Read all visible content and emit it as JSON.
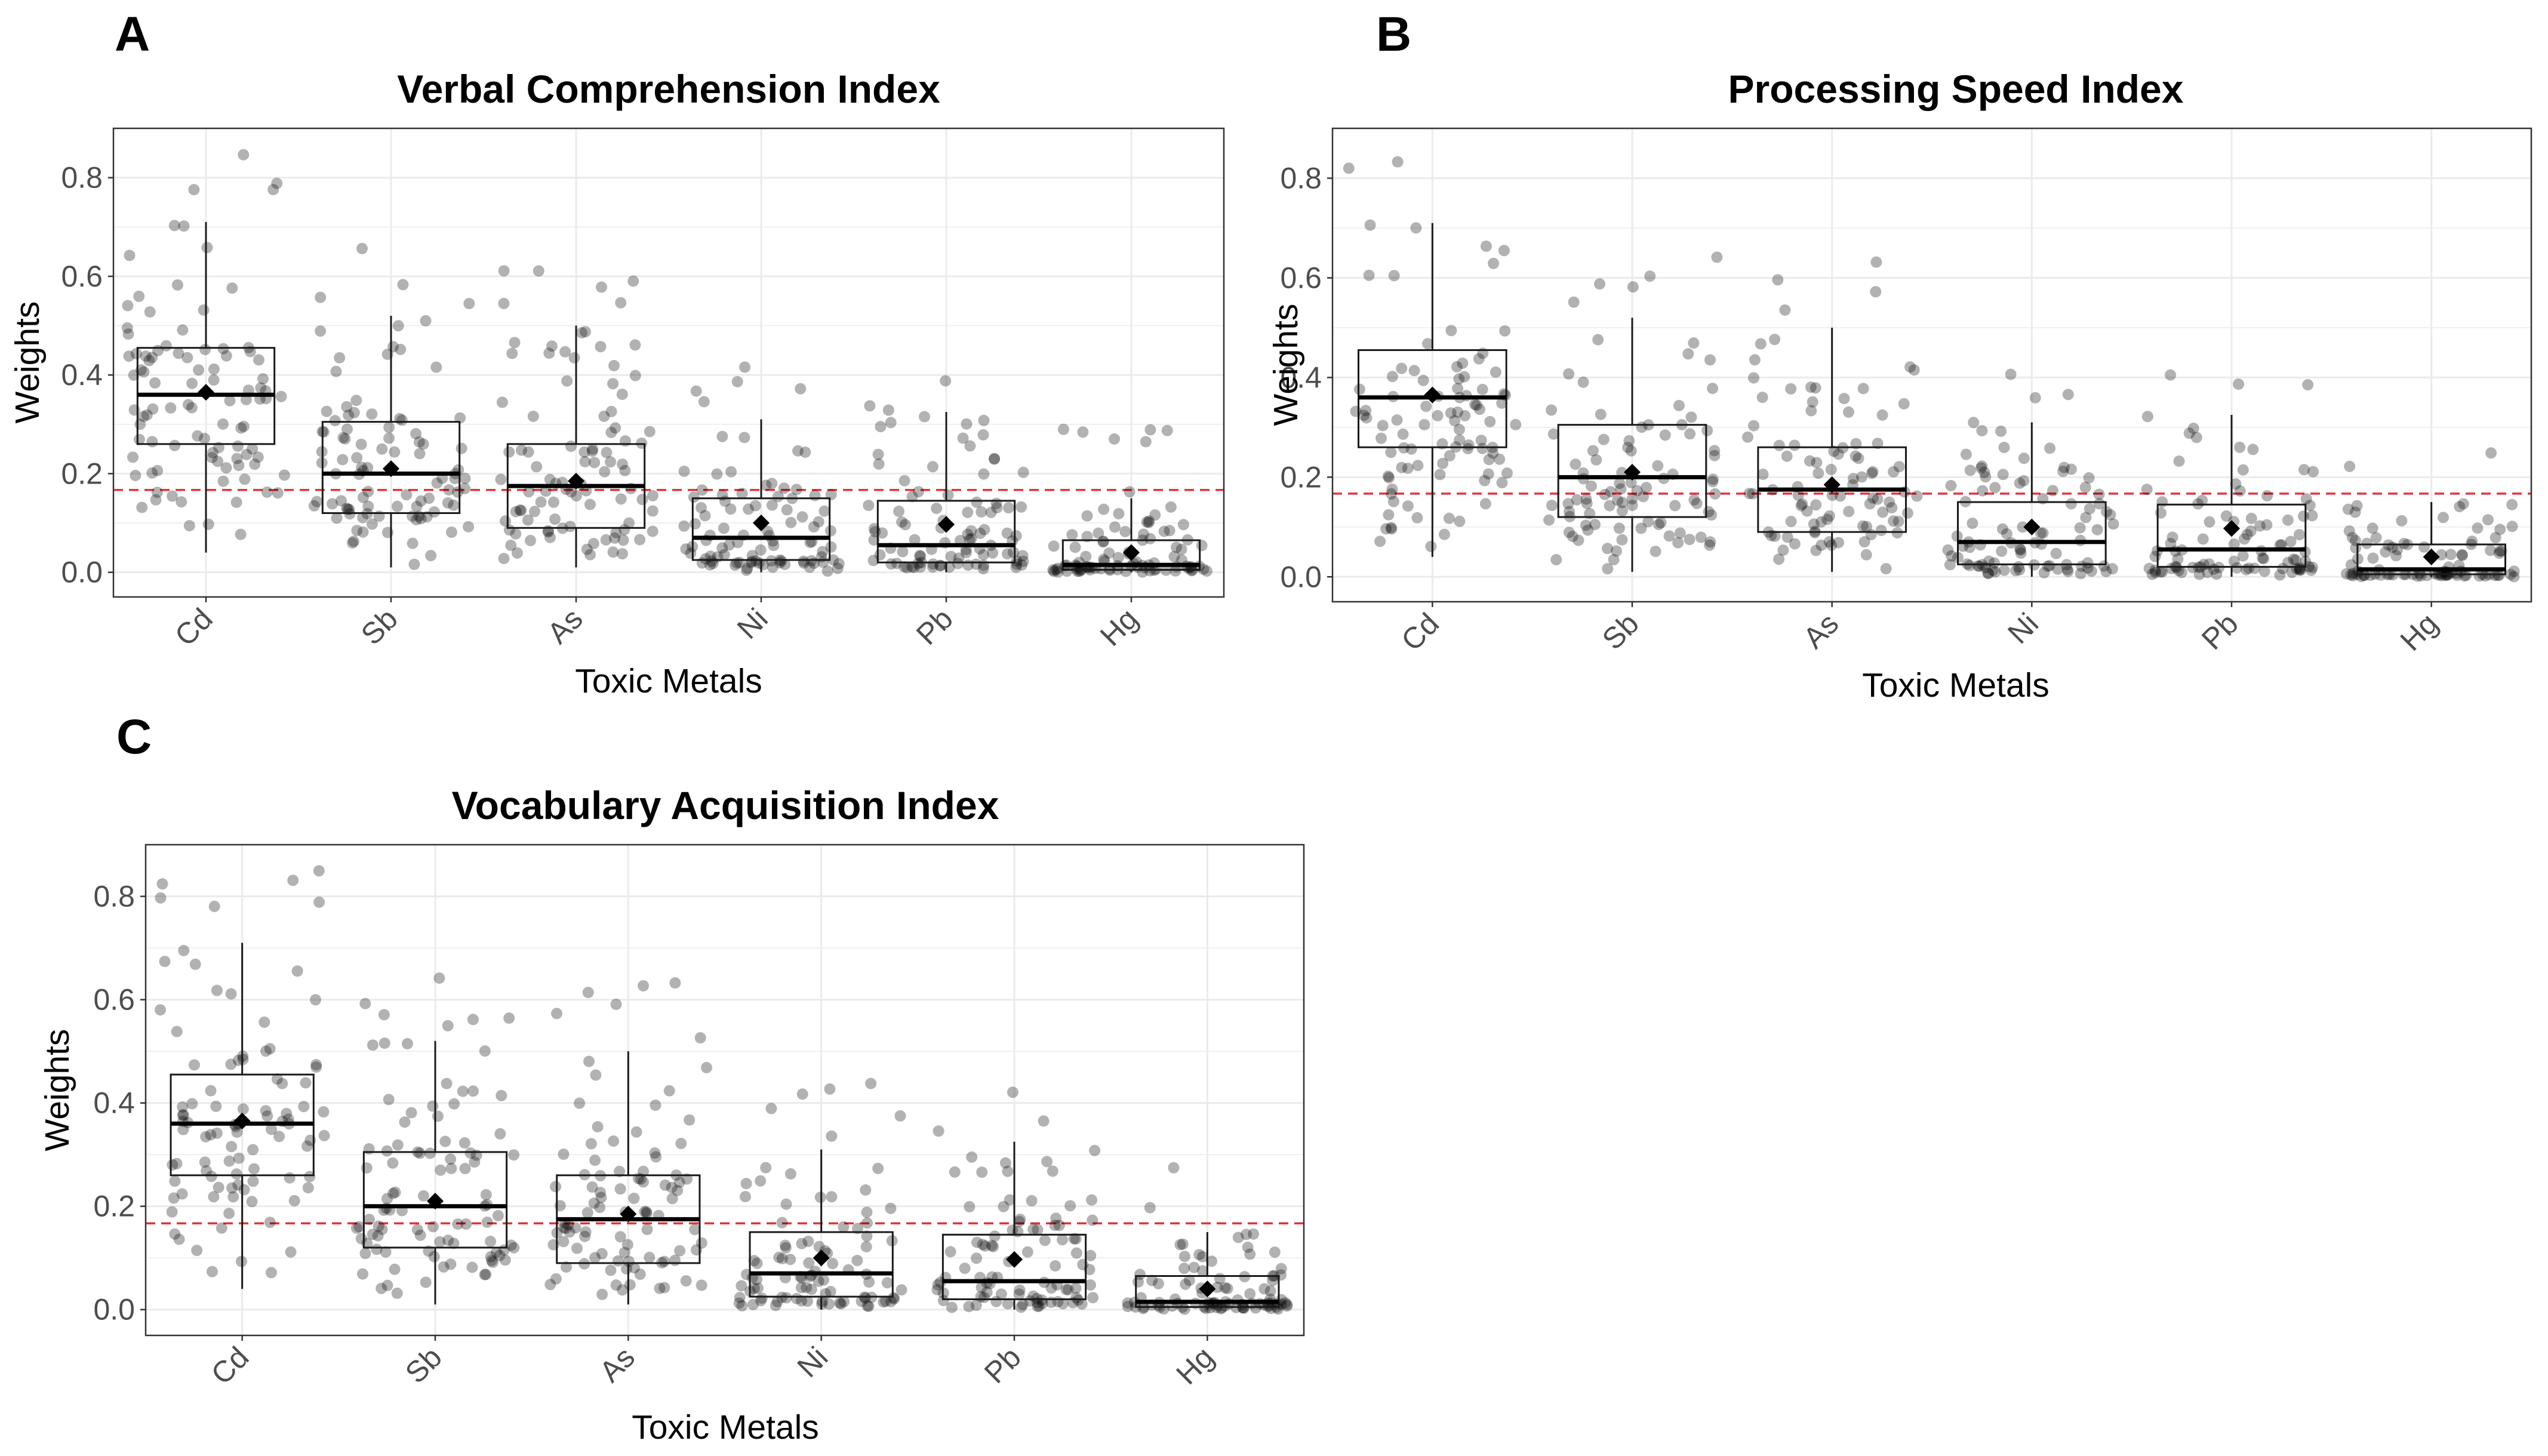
{
  "chart_data": [
    {
      "panel": "A",
      "type": "box",
      "title": "Verbal Comprehension Index",
      "xlabel": "Toxic Metals",
      "ylabel": "Weights",
      "ylim": [
        -0.05,
        0.9
      ],
      "yticks": [
        0.0,
        0.2,
        0.4,
        0.6,
        0.8
      ],
      "ytick_labels": [
        "0.0",
        "0.2",
        "0.4",
        "0.6",
        "0.8"
      ],
      "grid": true,
      "reference_line": {
        "y": 0.167,
        "color": "#e8323c",
        "style": "dashed"
      },
      "categories": [
        "Cd",
        "Sb",
        "As",
        "Ni",
        "Pb",
        "Hg"
      ],
      "boxes": [
        {
          "category": "Cd",
          "whisker_low": 0.04,
          "q1": 0.26,
          "median": 0.36,
          "q3": 0.455,
          "whisker_high": 0.71,
          "mean": 0.365
        },
        {
          "category": "Sb",
          "whisker_low": 0.01,
          "q1": 0.12,
          "median": 0.2,
          "q3": 0.305,
          "whisker_high": 0.52,
          "mean": 0.21
        },
        {
          "category": "As",
          "whisker_low": 0.01,
          "q1": 0.09,
          "median": 0.175,
          "q3": 0.26,
          "whisker_high": 0.5,
          "mean": 0.185
        },
        {
          "category": "Ni",
          "whisker_low": 0.0,
          "q1": 0.025,
          "median": 0.07,
          "q3": 0.15,
          "whisker_high": 0.31,
          "mean": 0.1
        },
        {
          "category": "Pb",
          "whisker_low": 0.0,
          "q1": 0.02,
          "median": 0.055,
          "q3": 0.145,
          "whisker_high": 0.325,
          "mean": 0.097
        },
        {
          "category": "Hg",
          "whisker_low": 0.0,
          "q1": 0.005,
          "median": 0.015,
          "q3": 0.065,
          "whisker_high": 0.15,
          "mean": 0.04
        }
      ]
    },
    {
      "panel": "B",
      "type": "box",
      "title": "Processing Speed Index",
      "xlabel": "Toxic Metals",
      "ylabel": "Weights",
      "ylim": [
        -0.05,
        0.9
      ],
      "yticks": [
        0.0,
        0.2,
        0.4,
        0.6,
        0.8
      ],
      "ytick_labels": [
        "0.0",
        "0.2",
        "0.4",
        "0.6",
        "0.8"
      ],
      "grid": true,
      "reference_line": {
        "y": 0.167,
        "color": "#e8323c",
        "style": "dashed"
      },
      "categories": [
        "Cd",
        "Sb",
        "As",
        "Ni",
        "Pb",
        "Hg"
      ],
      "boxes": [
        {
          "category": "Cd",
          "whisker_low": 0.04,
          "q1": 0.26,
          "median": 0.36,
          "q3": 0.455,
          "whisker_high": 0.71,
          "mean": 0.365
        },
        {
          "category": "Sb",
          "whisker_low": 0.01,
          "q1": 0.12,
          "median": 0.2,
          "q3": 0.305,
          "whisker_high": 0.52,
          "mean": 0.21
        },
        {
          "category": "As",
          "whisker_low": 0.01,
          "q1": 0.09,
          "median": 0.175,
          "q3": 0.26,
          "whisker_high": 0.5,
          "mean": 0.185
        },
        {
          "category": "Ni",
          "whisker_low": 0.0,
          "q1": 0.025,
          "median": 0.07,
          "q3": 0.15,
          "whisker_high": 0.31,
          "mean": 0.1
        },
        {
          "category": "Pb",
          "whisker_low": 0.0,
          "q1": 0.02,
          "median": 0.055,
          "q3": 0.145,
          "whisker_high": 0.325,
          "mean": 0.097
        },
        {
          "category": "Hg",
          "whisker_low": 0.0,
          "q1": 0.005,
          "median": 0.015,
          "q3": 0.065,
          "whisker_high": 0.15,
          "mean": 0.04
        }
      ]
    },
    {
      "panel": "C",
      "type": "box",
      "title": "Vocabulary Acquisition Index",
      "xlabel": "Toxic Metals",
      "ylabel": "Weights",
      "ylim": [
        -0.05,
        0.9
      ],
      "yticks": [
        0.0,
        0.2,
        0.4,
        0.6,
        0.8
      ],
      "ytick_labels": [
        "0.0",
        "0.2",
        "0.4",
        "0.6",
        "0.8"
      ],
      "grid": true,
      "reference_line": {
        "y": 0.167,
        "color": "#e8323c",
        "style": "dashed"
      },
      "categories": [
        "Cd",
        "Sb",
        "As",
        "Ni",
        "Pb",
        "Hg"
      ],
      "boxes": [
        {
          "category": "Cd",
          "whisker_low": 0.04,
          "q1": 0.26,
          "median": 0.36,
          "q3": 0.455,
          "whisker_high": 0.71,
          "mean": 0.365
        },
        {
          "category": "Sb",
          "whisker_low": 0.01,
          "q1": 0.12,
          "median": 0.2,
          "q3": 0.305,
          "whisker_high": 0.52,
          "mean": 0.21
        },
        {
          "category": "As",
          "whisker_low": 0.01,
          "q1": 0.09,
          "median": 0.175,
          "q3": 0.26,
          "whisker_high": 0.5,
          "mean": 0.185
        },
        {
          "category": "Ni",
          "whisker_low": 0.0,
          "q1": 0.025,
          "median": 0.07,
          "q3": 0.15,
          "whisker_high": 0.31,
          "mean": 0.1
        },
        {
          "category": "Pb",
          "whisker_low": 0.0,
          "q1": 0.02,
          "median": 0.055,
          "q3": 0.145,
          "whisker_high": 0.325,
          "mean": 0.097
        },
        {
          "category": "Hg",
          "whisker_low": 0.0,
          "q1": 0.005,
          "median": 0.015,
          "q3": 0.065,
          "whisker_high": 0.15,
          "mean": 0.04
        }
      ]
    }
  ],
  "colors": {
    "background": "#ffffff",
    "panel_background": "#ffffff",
    "grid": "#ebebeb",
    "border": "#333333",
    "points": "#000000",
    "reference_line": "#e8323c"
  }
}
